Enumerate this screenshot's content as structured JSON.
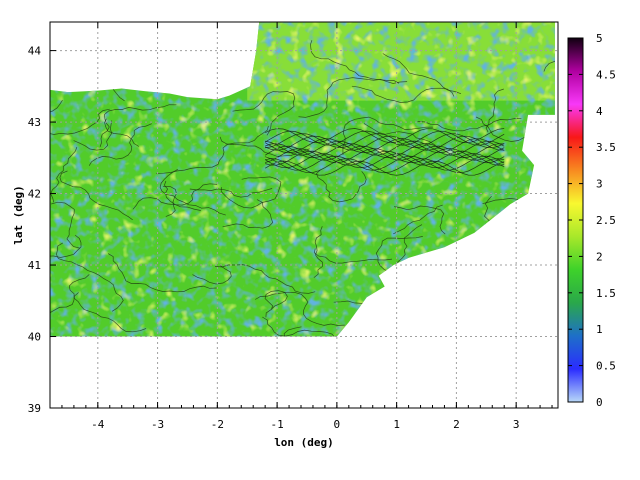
{
  "chart_data": {
    "type": "heatmap",
    "title": "",
    "xlabel": "lon (deg)",
    "ylabel": "lat (deg)",
    "xlim": [
      -4.8,
      3.7
    ],
    "ylim": [
      39,
      44.4
    ],
    "grid": true,
    "x_ticks": [
      "-4",
      "-3",
      "-2",
      "-1",
      "0",
      "1",
      "2",
      "3"
    ],
    "x_tick_values": [
      -4,
      -3,
      -2,
      -1,
      0,
      1,
      2,
      3
    ],
    "y_ticks": [
      "39",
      "40",
      "41",
      "42",
      "43",
      "44"
    ],
    "y_tick_values": [
      39,
      40,
      41,
      42,
      43,
      44
    ],
    "colorbar": {
      "min": 0,
      "max": 5,
      "tick_labels": [
        "0",
        "0.5",
        "1",
        "1.5",
        "2",
        "2.5",
        "3",
        "3.5",
        "4",
        "4.5",
        "5"
      ],
      "tick_values": [
        0,
        0.5,
        1,
        1.5,
        2,
        2.5,
        3,
        3.5,
        4,
        4.5,
        5
      ],
      "colors": [
        "#b8d8f8",
        "#2a2cff",
        "#1e70c8",
        "#2aa84a",
        "#3ed22a",
        "#a8e82a",
        "#f8f830",
        "#f88a20",
        "#f81818",
        "#f838f8",
        "#b000a0",
        "#100010"
      ]
    },
    "land_region": {
      "description_value_range": [
        0.8,
        2.6
      ],
      "dominant_value": 1.5,
      "lon_range": [
        -4.8,
        3.4
      ],
      "lat_range": [
        40,
        44.4
      ]
    }
  }
}
